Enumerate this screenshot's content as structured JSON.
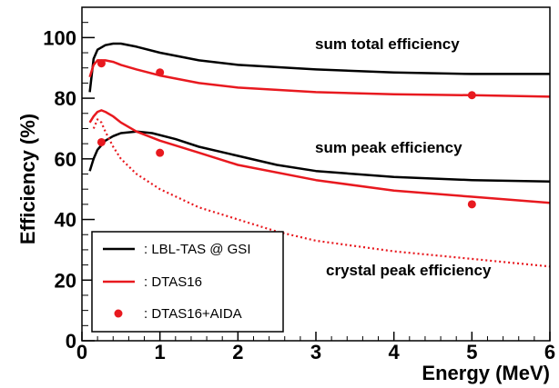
{
  "chart_data": {
    "type": "line",
    "title": "",
    "xlabel": "Energy (MeV)",
    "ylabel": "Efficiency (%)",
    "xlim": [
      0,
      6
    ],
    "ylim": [
      0,
      110
    ],
    "xticks": [
      0,
      1,
      2,
      3,
      4,
      5,
      6
    ],
    "yticks": [
      0,
      20,
      40,
      60,
      80,
      100
    ],
    "grid": false,
    "legend_position": "bottom-left",
    "colors": {
      "black": "#000000",
      "red": "#e8191f"
    },
    "legend": [
      {
        "label": ": LBL-TAS @ GSI",
        "style": "black-line"
      },
      {
        "label": ": DTAS16",
        "style": "red-line"
      },
      {
        "label": ": DTAS16+AIDA",
        "style": "red-marker"
      }
    ],
    "annotations": [
      {
        "text": "sum total efficiency"
      },
      {
        "text": "sum peak efficiency"
      },
      {
        "text": "crystal peak efficiency"
      }
    ],
    "series": [
      {
        "group": "LBL-TAS @ GSI",
        "curve": "sum total efficiency",
        "style": "black-line",
        "x": [
          0.1,
          0.15,
          0.2,
          0.3,
          0.4,
          0.5,
          0.7,
          1.0,
          1.5,
          2.0,
          3.0,
          4.0,
          5.0,
          6.0
        ],
        "y": [
          82,
          93,
          96,
          97.5,
          98,
          98,
          97,
          95,
          92.5,
          91,
          89.5,
          88.5,
          88,
          88
        ]
      },
      {
        "group": "DTAS16",
        "curve": "sum total efficiency",
        "style": "red-line",
        "x": [
          0.1,
          0.15,
          0.2,
          0.3,
          0.4,
          0.5,
          0.7,
          1.0,
          1.5,
          2.0,
          3.0,
          4.0,
          5.0,
          6.0
        ],
        "y": [
          87,
          91,
          92.5,
          92.5,
          92,
          91,
          89.5,
          87.5,
          85,
          83.5,
          82,
          81.3,
          81,
          80.5
        ]
      },
      {
        "group": "LBL-TAS @ GSI",
        "curve": "sum peak efficiency",
        "style": "black-line",
        "x": [
          0.1,
          0.15,
          0.2,
          0.3,
          0.4,
          0.5,
          0.7,
          0.9,
          1.2,
          1.5,
          2.0,
          2.5,
          3.0,
          4.0,
          5.0,
          6.0
        ],
        "y": [
          56,
          60,
          63,
          66,
          67.5,
          68.5,
          69,
          68.5,
          66.5,
          64,
          61,
          58,
          56,
          54,
          53,
          52.5
        ]
      },
      {
        "group": "DTAS16",
        "curve": "sum peak efficiency",
        "style": "red-line",
        "x": [
          0.1,
          0.15,
          0.2,
          0.25,
          0.3,
          0.4,
          0.5,
          0.7,
          1.0,
          1.5,
          2.0,
          3.0,
          4.0,
          5.0,
          6.0
        ],
        "y": [
          72,
          74,
          75.5,
          76,
          75.5,
          74,
          72,
          69,
          66,
          62,
          58,
          53,
          49.5,
          47.5,
          45.5
        ]
      },
      {
        "group": "DTAS16",
        "curve": "crystal peak efficiency",
        "style": "red-dotted",
        "x": [
          0.15,
          0.2,
          0.25,
          0.3,
          0.4,
          0.5,
          0.7,
          1.0,
          1.5,
          2.0,
          2.5,
          3.0,
          4.0,
          5.0,
          6.0
        ],
        "y": [
          70,
          73,
          72,
          69,
          64,
          60,
          55,
          50,
          44,
          40,
          36,
          33,
          29.5,
          27,
          24.5
        ]
      },
      {
        "group": "DTAS16+AIDA",
        "curve": "markers",
        "style": "red-marker",
        "x": [
          0.25,
          1.0,
          5.0,
          0.25,
          1.0,
          5.0
        ],
        "y": [
          91.5,
          88.5,
          81,
          65.5,
          62,
          45
        ]
      }
    ]
  }
}
